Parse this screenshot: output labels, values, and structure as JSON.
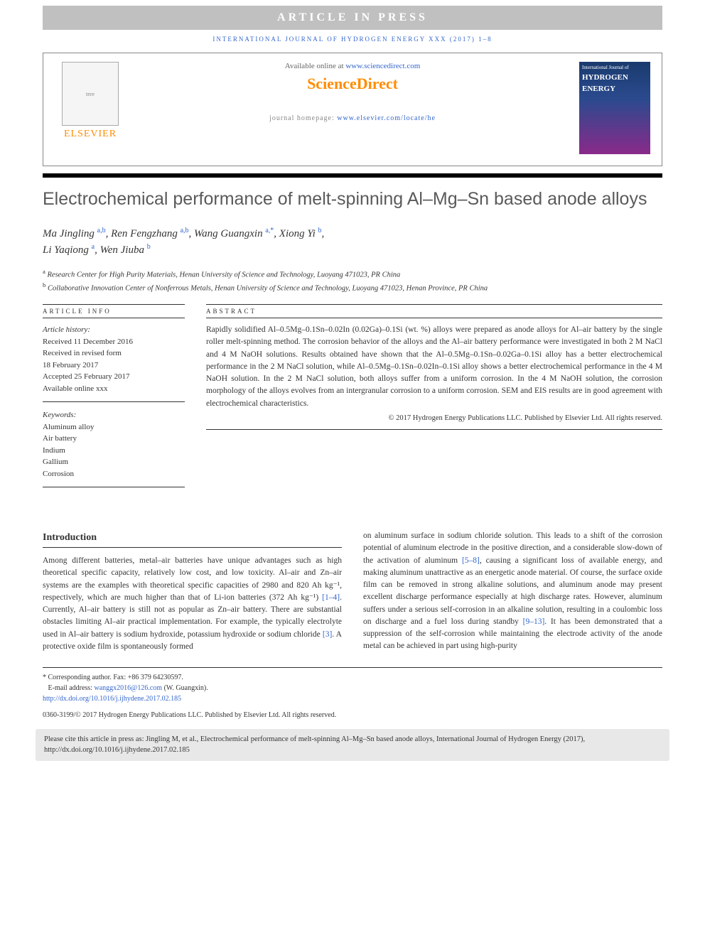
{
  "banner": "ARTICLE IN PRESS",
  "journal_ref": "INTERNATIONAL JOURNAL OF HYDROGEN ENERGY XXX (2017) 1–8",
  "header": {
    "available_prefix": "Available online at ",
    "available_url": "www.sciencedirect.com",
    "sciencedirect": "ScienceDirect",
    "homepage_prefix": "journal homepage: ",
    "homepage_url": "www.elsevier.com/locate/he",
    "elsevier_label": "ELSEVIER",
    "cover_small": "International Journal of",
    "cover_title1": "HYDROGEN",
    "cover_title2": "ENERGY"
  },
  "title": "Electrochemical performance of melt-spinning Al–Mg–Sn based anode alloys",
  "authors_html": "Ma Jingling <sup>a,b</sup>, Ren Fengzhang <sup>a,b</sup>, Wang Guangxin <sup>a,*</sup>, Xiong Yi <sup>b</sup>, Li Yaqiong <sup>a</sup>, Wen Jiuba <sup>b</sup>",
  "affiliations": {
    "a": "Research Center for High Purity Materials, Henan University of Science and Technology, Luoyang 471023, PR China",
    "b": "Collaborative Innovation Center of Nonferrous Metals, Henan University of Science and Technology, Luoyang 471023, Henan Province, PR China"
  },
  "info": {
    "label": "ARTICLE INFO",
    "history_label": "Article history:",
    "received": "Received 11 December 2016",
    "revised1": "Received in revised form",
    "revised2": "18 February 2017",
    "accepted": "Accepted 25 February 2017",
    "online": "Available online xxx",
    "keywords_label": "Keywords:",
    "keywords": [
      "Aluminum alloy",
      "Air battery",
      "Indium",
      "Gallium",
      "Corrosion"
    ]
  },
  "abstract": {
    "label": "ABSTRACT",
    "text": "Rapidly solidified Al–0.5Mg–0.1Sn–0.02In (0.02Ga)–0.1Si (wt. %) alloys were prepared as anode alloys for Al–air battery by the single roller melt-spinning method. The corrosion behavior of the alloys and the Al–air battery performance were investigated in both 2 M NaCl and 4 M NaOH solutions. Results obtained have shown that the Al–0.5Mg–0.1Sn–0.02Ga–0.1Si alloy has a better electrochemical performance in the 2 M NaCl solution, while Al–0.5Mg–0.1Sn–0.02In–0.1Si alloy shows a better electrochemical performance in the 4 M NaOH solution. In the 2 M NaCl solution, both alloys suffer from a uniform corrosion. In the 4 M NaOH solution, the corrosion morphology of the alloys evolves from an intergranular corrosion to a uniform corrosion. SEM and EIS results are in good agreement with electrochemical characteristics.",
    "copyright": "© 2017 Hydrogen Energy Publications LLC. Published by Elsevier Ltd. All rights reserved."
  },
  "intro": {
    "heading": "Introduction",
    "col1_pre": "Among different batteries, metal–air batteries have unique advantages such as high theoretical specific capacity, relatively low cost, and low toxicity. Al–air and Zn–air systems are the examples with theoretical specific capacities of 2980 and 820 Ah kg⁻¹, respectively, which are much higher than that of Li-ion batteries (372 Ah kg⁻¹) ",
    "ref1": "[1–4]",
    "col1_mid": ". Currently, Al–air battery is still not as popular as Zn–air battery. There are substantial obstacles limiting Al–air practical implementation. For example, the typically electrolyte used in Al–air battery is sodium hydroxide, potassium hydroxide or sodium chloride ",
    "ref2": "[3]",
    "col1_post": ". A protective oxide film is spontaneously formed",
    "col2_pre": "on aluminum surface in sodium chloride solution. This leads to a shift of the corrosion potential of aluminum electrode in the positive direction, and a considerable slow-down of the activation of aluminum ",
    "ref3": "[5–8]",
    "col2_mid": ", causing a significant loss of available energy, and making aluminum unattractive as an energetic anode material. Of course, the surface oxide film can be removed in strong alkaline solutions, and aluminum anode may present excellent discharge performance especially at high discharge rates. However, aluminum suffers under a serious self-corrosion in an alkaline solution, resulting in a coulombic loss on discharge and a fuel loss during standby ",
    "ref4": "[9–13]",
    "col2_post": ". It has been demonstrated that a suppression of the self-corrosion while maintaining the electrode activity of the anode metal can be achieved in part using high-purity"
  },
  "footnotes": {
    "corresponding": "* Corresponding author. Fax: +86 379 64230597.",
    "email_label": "E-mail address: ",
    "email": "wanggx2016@126.com",
    "email_suffix": " (W. Guangxin).",
    "doi": "http://dx.doi.org/10.1016/j.ijhydene.2017.02.185",
    "issn_copy": "0360-3199/© 2017 Hydrogen Energy Publications LLC. Published by Elsevier Ltd. All rights reserved."
  },
  "citebox": "Please cite this article in press as: Jingling M, et al., Electrochemical performance of melt-spinning Al–Mg–Sn based anode alloys, International Journal of Hydrogen Energy (2017), http://dx.doi.org/10.1016/j.ijhydene.2017.02.185",
  "colors": {
    "link": "#3366cc",
    "orange": "#ff8c00",
    "banner_bg": "#c0c0c0"
  }
}
